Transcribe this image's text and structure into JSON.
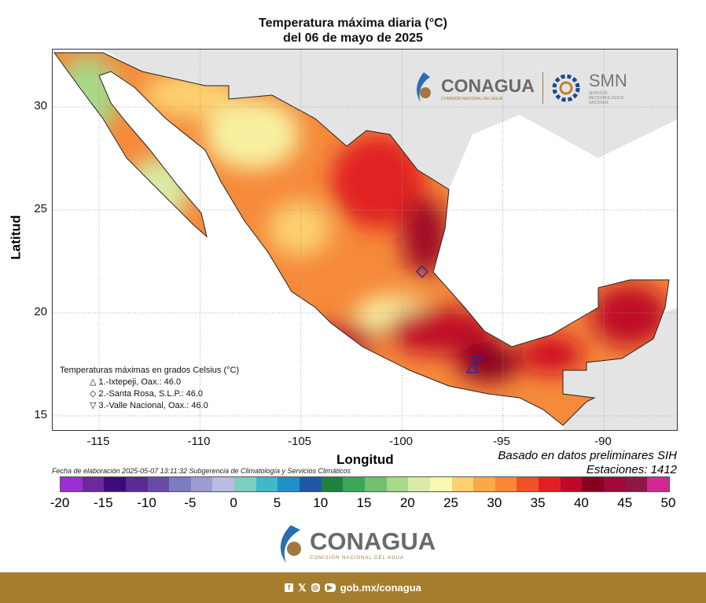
{
  "title": {
    "line1": "Temperatura máxima diaria (°C)",
    "line2": "del 06 de mayo de 2025"
  },
  "axes": {
    "xlabel": "Longitud",
    "ylabel": "Latitud",
    "xticks": [
      "-115",
      "-110",
      "-105",
      "-100",
      "-95",
      "-90"
    ],
    "yticks": [
      "30",
      "25",
      "20",
      "15"
    ]
  },
  "notes": {
    "source": "Basado en datos preliminares SIH",
    "stations": "Estaciones:  1412",
    "fecha": "Fecha de elaboración 2025-05-07 13:11:32 Subgerencia de Climatología y Servicios Climáticos"
  },
  "legend": {
    "title": "Temperaturas máximas en grados Celsius (°C)",
    "items": [
      {
        "symbol": "△",
        "label": "1.-Ixtepeji, Oax.: 46.0"
      },
      {
        "symbol": "◇",
        "label": "2.-Santa Rosa, S.L.P.: 46.0"
      },
      {
        "symbol": "▽",
        "label": "3.-Valle Nacional, Oax.: 46.0"
      }
    ]
  },
  "colorbar": {
    "labels": [
      "-20",
      "-15",
      "-10",
      "-5",
      "0",
      "5",
      "10",
      "15",
      "20",
      "25",
      "30",
      "35",
      "40",
      "45",
      "50"
    ],
    "colors": [
      "#9b30d0",
      "#6a2a9a",
      "#3d0a7a",
      "#5a2a92",
      "#6a4aa8",
      "#7c7cc0",
      "#9c9cd0",
      "#b8bce0",
      "#7cd0c0",
      "#40b8c8",
      "#2090c8",
      "#2058a8",
      "#208040",
      "#38a858",
      "#70c070",
      "#a8d888",
      "#d8eca8",
      "#f8f8b0",
      "#fcd070",
      "#fca848",
      "#f88838",
      "#f05028",
      "#e02020",
      "#c00828",
      "#880020",
      "#a00838",
      "#8c1848",
      "#d02890"
    ]
  },
  "header_logos": {
    "conagua": "CONAGUA",
    "conagua_sub": "COMISIÓN NACIONAL DEL AGUA",
    "smn": "SMN",
    "smn_sub": "SERVICIO METEOROLÓGICO NACIONAL"
  },
  "footer": {
    "url": "gob.mx/conagua",
    "logo": "CONAGUA",
    "logo_sub": "COMISIÓN NACIONAL DEL AGUA"
  },
  "stations": [
    {
      "name": "Ixtepeji",
      "lon": -96.5,
      "lat": 17.3
    },
    {
      "name": "Santa Rosa",
      "lon": -99.0,
      "lat": 22.0
    },
    {
      "name": "Valle Nacional",
      "lon": -96.3,
      "lat": 17.7
    }
  ]
}
